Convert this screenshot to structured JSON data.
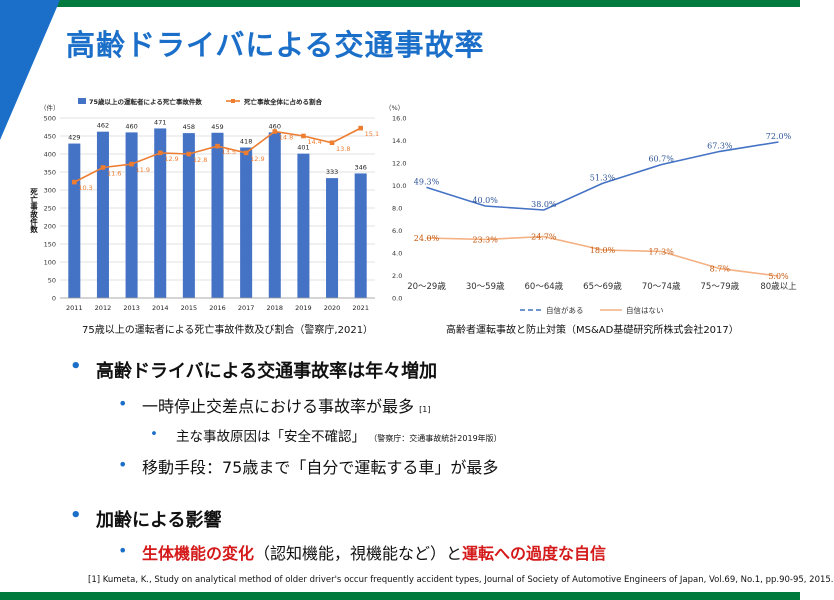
{
  "slide": {
    "title": "高齢ドライバによる交通事故率",
    "caption_left": "75歳以上の運転者による死亡事故件数及び割合（警察庁,2021）",
    "caption_right": "高齢者運転事故と防止対策（MS&AD基礎研究所株式会社2017）",
    "footnote": "[1]  Kumeta, K., Study on analytical method of older driver's occur frequently accident types, Journal of Society of Automotive Engineers of Japan, Vol.69, No.1, pp.90-95, 2015.",
    "accent_color": "#1b6fc9",
    "bar_color": "#007a3d"
  },
  "bullets": {
    "b1": "高齢ドライバによる交通事故率は年々増加",
    "b1_1": "一時停止交差点における事故率が最多",
    "b1_1_ref": "[1]",
    "b1_1_1": "主な事故原因は「安全不確認」",
    "b1_1_1_note": "（警察庁：交通事故統計2019年版）",
    "b1_2": "移動手段：75歳まで「自分で運転する車」が最多",
    "b2": "加齢による影響",
    "b2_1_red1": "生体機能の変化",
    "b2_1_mid": "（認知機能，視機能など）と",
    "b2_1_red2": "運転への過度な自信"
  },
  "chart_data": [
    {
      "type": "bar",
      "categories": [
        "2011",
        "2012",
        "2013",
        "2014",
        "2015",
        "2016",
        "2017",
        "2018",
        "2019",
        "2020",
        "2021"
      ],
      "series": [
        {
          "name": "75歳以上の運転者による死亡事故件数",
          "type": "bar",
          "axis": "left",
          "color": "#4472c4",
          "values": [
            429,
            462,
            460,
            471,
            458,
            459,
            418,
            460,
            401,
            333,
            346
          ]
        },
        {
          "name": "死亡事故全体に占める割合",
          "type": "line",
          "axis": "right",
          "color": "#ed7d31",
          "values": [
            10.3,
            11.6,
            11.9,
            12.9,
            12.8,
            13.5,
            12.9,
            14.8,
            14.4,
            13.8,
            15.1
          ]
        }
      ],
      "ylabel": "死亡事故件数",
      "left_unit": "（件）",
      "right_unit": "（%）",
      "ylim": [
        0,
        500
      ],
      "y2lim": [
        0,
        16.0
      ],
      "yticks": [
        "0",
        "50",
        "100",
        "150",
        "200",
        "250",
        "300",
        "350",
        "400",
        "450",
        "500"
      ],
      "y2ticks": [
        "0.0",
        "2.0",
        "4.0",
        "6.0",
        "8.0",
        "10.0",
        "12.0",
        "14.0",
        "16.0"
      ],
      "grid": true,
      "legend": "top"
    },
    {
      "type": "line",
      "categories": [
        "20～29歳",
        "30～59歳",
        "60～64歳",
        "65～69歳",
        "70～74歳",
        "75～79歳",
        "80歳以上"
      ],
      "series": [
        {
          "name": "自信がある",
          "color": "#4472c4",
          "values": [
            49.3,
            40.0,
            38.0,
            51.3,
            60.7,
            67.3,
            72.0
          ],
          "labels": [
            "49.3%",
            "40.0%",
            "38.0%",
            "51.3%",
            "60.7%",
            "67.3%",
            "72.0%"
          ]
        },
        {
          "name": "自信はない",
          "color": "#f4b183",
          "values": [
            24.0,
            23.3,
            24.7,
            18.0,
            17.3,
            8.7,
            5.0
          ],
          "labels": [
            "24.0%",
            "23.3%",
            "24.7%",
            "18.0%",
            "17.3%",
            "8.7%",
            "5.0%"
          ]
        }
      ],
      "ylim": [
        0,
        80
      ],
      "legend": "bottom"
    }
  ]
}
